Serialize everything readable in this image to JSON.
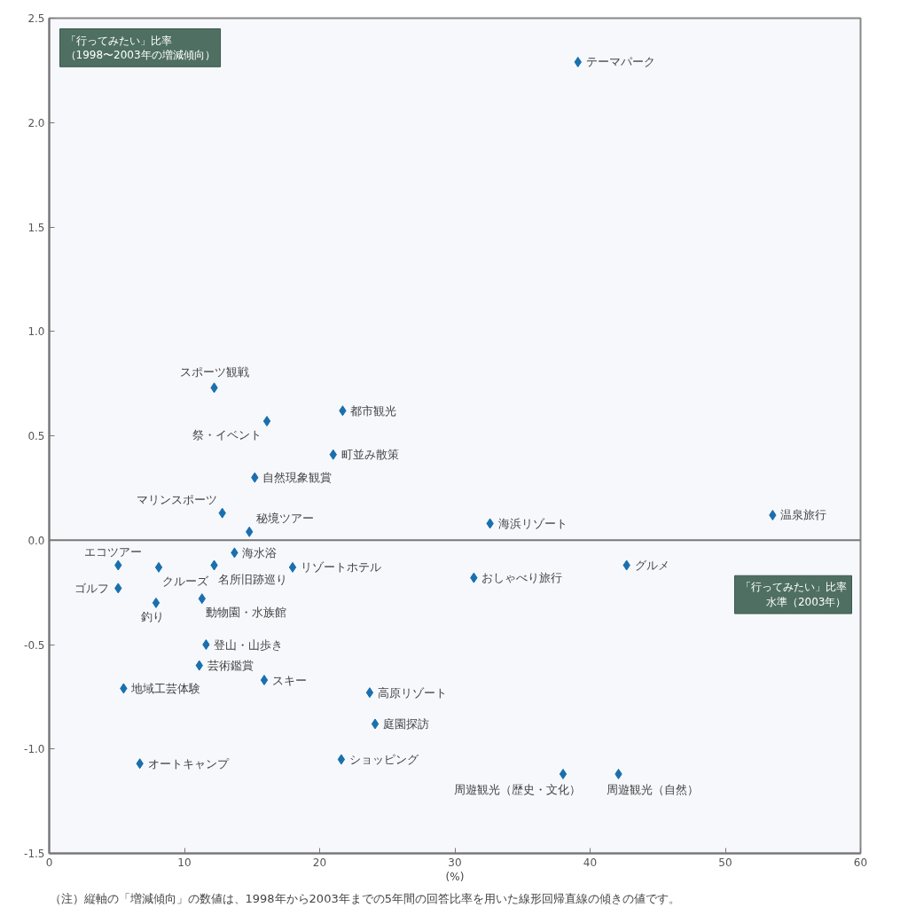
{
  "chart_data": {
    "type": "scatter",
    "xlabel": "「行ってみたい」比率水準（2003年）",
    "ylabel": "「行ってみたい」比率（1998〜2003年の増減傾向）",
    "x": [
      39.1,
      12.2,
      16.1,
      21.7,
      21.0,
      15.2,
      12.8,
      14.8,
      32.6,
      53.5,
      13.7,
      5.1,
      8.1,
      12.2,
      18.0,
      31.4,
      42.7,
      5.1,
      7.9,
      11.3,
      11.6,
      11.1,
      15.9,
      5.5,
      23.7,
      24.1,
      6.7,
      21.6,
      38.0,
      42.1
    ],
    "series": [
      {
        "color": "#1a6fae",
        "values": [
          2.29,
          0.73,
          0.57,
          0.62,
          0.41,
          0.3,
          0.13,
          0.04,
          0.08,
          0.12,
          -0.06,
          -0.12,
          -0.13,
          -0.12,
          -0.13,
          -0.18,
          -0.12,
          -0.23,
          -0.3,
          -0.28,
          -0.5,
          -0.6,
          -0.67,
          -0.71,
          -0.73,
          -0.88,
          -1.07,
          -1.05,
          -1.12,
          -1.12
        ]
      }
    ],
    "annotations": [
      {
        "text": "テーマパーク",
        "x": 39.1,
        "y": 2.29
      },
      {
        "text": "スポーツ観戦",
        "x": 12.2,
        "y": 0.73
      },
      {
        "text": "祭・イベント",
        "x": 16.1,
        "y": 0.57
      },
      {
        "text": "都市観光",
        "x": 21.7,
        "y": 0.62
      },
      {
        "text": "町並み散策",
        "x": 21.0,
        "y": 0.41
      },
      {
        "text": "自然現象観賞",
        "x": 15.2,
        "y": 0.3
      },
      {
        "text": "マリンスポーツ",
        "x": 12.8,
        "y": 0.13
      },
      {
        "text": "秘境ツアー",
        "x": 14.8,
        "y": 0.04
      },
      {
        "text": "海浜リゾート",
        "x": 32.6,
        "y": 0.08
      },
      {
        "text": "温泉旅行",
        "x": 53.5,
        "y": 0.12
      },
      {
        "text": "海水浴",
        "x": 13.7,
        "y": -0.06
      },
      {
        "text": "エコツアー",
        "x": 5.1,
        "y": -0.12
      },
      {
        "text": "クルーズ",
        "x": 8.1,
        "y": -0.13
      },
      {
        "text": "名所旧跡巡り",
        "x": 12.2,
        "y": -0.12
      },
      {
        "text": "リゾートホテル",
        "x": 18.0,
        "y": -0.13
      },
      {
        "text": "おしゃべり旅行",
        "x": 31.4,
        "y": -0.18
      },
      {
        "text": "グルメ",
        "x": 42.7,
        "y": -0.12
      },
      {
        "text": "ゴルフ",
        "x": 5.1,
        "y": -0.23
      },
      {
        "text": "釣り",
        "x": 7.9,
        "y": -0.3
      },
      {
        "text": "動物園・水族館",
        "x": 11.3,
        "y": -0.28
      },
      {
        "text": "登山・山歩き",
        "x": 11.6,
        "y": -0.5
      },
      {
        "text": "芸術鑑賞",
        "x": 11.1,
        "y": -0.6
      },
      {
        "text": "スキー",
        "x": 15.9,
        "y": -0.67
      },
      {
        "text": "地域工芸体験",
        "x": 5.5,
        "y": -0.71
      },
      {
        "text": "高原リゾート",
        "x": 23.7,
        "y": -0.73
      },
      {
        "text": "庭園探訪",
        "x": 24.1,
        "y": -0.88
      },
      {
        "text": "オートキャンプ",
        "x": 6.7,
        "y": -1.07
      },
      {
        "text": "ショッピング",
        "x": 21.6,
        "y": -1.05
      },
      {
        "text": "周遊観光（歴史・文化）",
        "x": 38.0,
        "y": -1.12
      },
      {
        "text": "周遊観光（自然）",
        "x": 42.1,
        "y": -1.12
      },
      "(%)",
      "（注）縦軸の「増減傾向」の数値は、1998年から2003年までの5年間の回答比率を用いた線形回帰直線の傾きの値です。"
    ],
    "xlim": [
      0,
      60
    ],
    "ylim": [
      -1.5,
      2.5
    ],
    "xticks": [
      0,
      10,
      20,
      30,
      40,
      50,
      60
    ],
    "yticks": [
      {
        "value": -1.5,
        "label": "-1.5"
      },
      {
        "value": -1,
        "label": "-1.0"
      },
      {
        "value": -0.5,
        "label": "-0.5"
      },
      {
        "value": 0,
        "label": "0.0"
      },
      {
        "value": 0.5,
        "label": "0.5"
      },
      {
        "value": 1,
        "label": "1.0"
      },
      {
        "value": 1.5,
        "label": "1.5"
      },
      {
        "value": 2,
        "label": "2.0"
      },
      {
        "value": 2.5,
        "label": "2.5"
      }
    ],
    "ref_lines": [
      {
        "axis": "y",
        "value": 0,
        "color": "#777777",
        "line_style": "solid"
      }
    ],
    "grid": false,
    "marker": "diamond"
  }
}
